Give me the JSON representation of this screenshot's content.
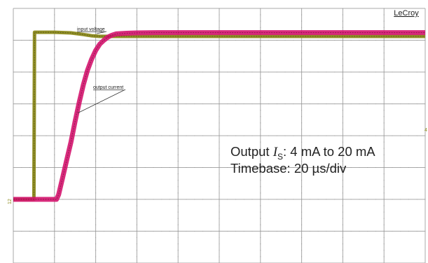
{
  "brand": "LeCroy",
  "annotation": {
    "line1_prefix": "Output ",
    "line1_symbol": "I",
    "line1_sub": "S",
    "line1_suffix": ": 4 mA to 20 mA",
    "line2": "Timebase: 20 µs/div"
  },
  "chart_data": {
    "type": "line",
    "title": "",
    "xlabel": "",
    "ylabel": "",
    "x_unit": "µs",
    "xlim": [
      0,
      200
    ],
    "ylim": [
      -4,
      4
    ],
    "grid": true,
    "grid_divisions": {
      "x": 10,
      "y": 8
    },
    "series": [
      {
        "name": "input voltage",
        "color": "#8c8a1c",
        "x": [
          0,
          10,
          10.3,
          20,
          28,
          34,
          38,
          42,
          200
        ],
        "y": [
          -2.0,
          -2.0,
          3.25,
          3.25,
          3.23,
          3.18,
          3.14,
          3.12,
          3.12
        ]
      },
      {
        "name": "output current",
        "color": "#d4146e",
        "x": [
          0,
          21,
          22,
          24,
          26,
          28,
          30,
          32,
          34,
          36,
          38,
          40,
          42,
          44,
          46,
          48,
          50,
          55,
          60,
          70,
          80,
          200
        ],
        "y": [
          -2.0,
          -2.0,
          -1.85,
          -1.3,
          -0.75,
          -0.2,
          0.45,
          1.05,
          1.6,
          2.05,
          2.4,
          2.68,
          2.88,
          3.0,
          3.1,
          3.16,
          3.2,
          3.22,
          3.23,
          3.24,
          3.24,
          3.24
        ]
      }
    ],
    "markers": {
      "left": "12",
      "right": "4"
    }
  }
}
